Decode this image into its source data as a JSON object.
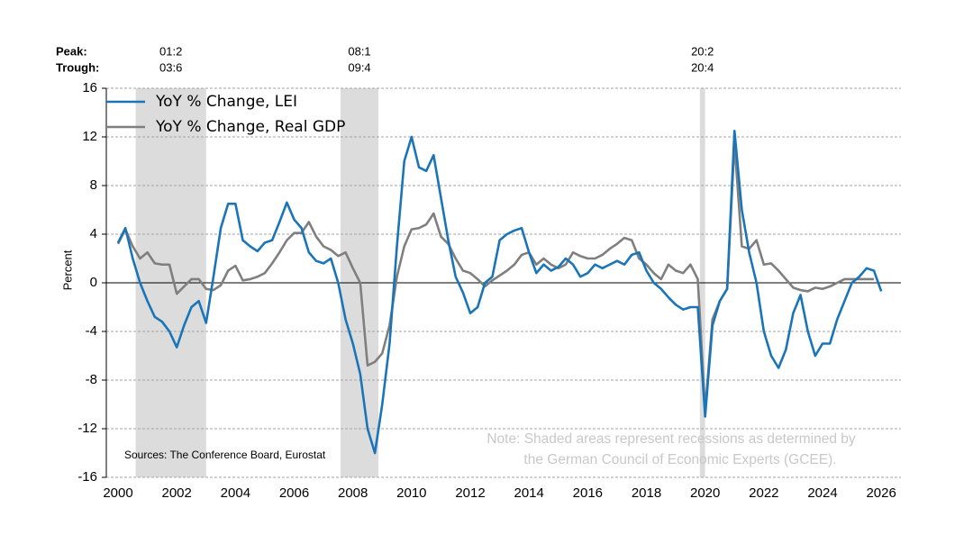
{
  "chart_data": {
    "type": "line",
    "y_label": "Percent",
    "peak_header": "Peak:",
    "trough_header": "Trough:",
    "source": "Sources: The Conference Board, Eurostat",
    "note": [
      "Note: Shaded areas represent recessions as determined by",
      "the German Council of Economic Experts (GCEE)."
    ],
    "recessions": [
      {
        "peak": "01:2",
        "trough": "03:6",
        "start": 2000.6,
        "end": 2003.0
      },
      {
        "peak": "08:1",
        "trough": "09:4",
        "start": 2007.58,
        "end": 2008.87
      },
      {
        "peak": "20:2",
        "trough": "20:4",
        "start": 2019.82,
        "end": 2020.0
      }
    ],
    "recession_color": "#dcdcdc",
    "xlim": [
      1999.6,
      2026.67
    ],
    "ylim": [
      -16,
      16
    ],
    "xticks": [
      2000,
      2002,
      2004,
      2006,
      2008,
      2010,
      2012,
      2014,
      2016,
      2018,
      2020,
      2022,
      2024,
      2026
    ],
    "yticks": [
      -16,
      -12,
      -8,
      -4,
      0,
      4,
      8,
      12,
      16
    ],
    "grid": true,
    "legend": "top-left",
    "x": [
      2000,
      2000.25,
      2000.5,
      2000.75,
      2001,
      2001.25,
      2001.5,
      2001.75,
      2002,
      2002.25,
      2002.5,
      2002.75,
      2003,
      2003.25,
      2003.5,
      2003.75,
      2004,
      2004.25,
      2004.5,
      2004.75,
      2005,
      2005.25,
      2005.5,
      2005.75,
      2006,
      2006.25,
      2006.5,
      2006.75,
      2007,
      2007.25,
      2007.5,
      2007.75,
      2008,
      2008.25,
      2008.5,
      2008.75,
      2009,
      2009.25,
      2009.5,
      2009.75,
      2010,
      2010.25,
      2010.5,
      2010.75,
      2011,
      2011.25,
      2011.5,
      2011.75,
      2012,
      2012.25,
      2012.5,
      2012.75,
      2013,
      2013.25,
      2013.5,
      2013.75,
      2014,
      2014.25,
      2014.5,
      2014.75,
      2015,
      2015.25,
      2015.5,
      2015.75,
      2016,
      2016.25,
      2016.5,
      2016.75,
      2017,
      2017.25,
      2017.5,
      2017.75,
      2018,
      2018.25,
      2018.5,
      2018.75,
      2019,
      2019.25,
      2019.5,
      2019.75,
      2020,
      2020.25,
      2020.5,
      2020.75,
      2021,
      2021.25,
      2021.5,
      2021.75,
      2022,
      2022.25,
      2022.5,
      2022.75,
      2023,
      2023.25,
      2023.5,
      2023.75,
      2024,
      2024.25,
      2024.5,
      2024.75,
      2025,
      2025.25,
      2025.5,
      2025.75,
      2026
    ],
    "series": [
      {
        "name": "YoY % Change, LEI",
        "color": "#1a75b8",
        "values": [
          3.3,
          4.5,
          2.0,
          0.0,
          -1.5,
          -2.8,
          -3.2,
          -4.0,
          -5.3,
          -3.5,
          -2.0,
          -1.5,
          -3.3,
          0.5,
          4.5,
          6.5,
          6.5,
          3.5,
          3.0,
          2.6,
          3.3,
          3.5,
          5.0,
          6.6,
          5.2,
          4.5,
          2.5,
          1.8,
          1.6,
          2.0,
          0.0,
          -3.0,
          -5.0,
          -7.5,
          -12.0,
          -14.0,
          -10.0,
          -5.0,
          3.0,
          10.0,
          12.0,
          9.5,
          9.2,
          10.5,
          7.0,
          3.5,
          0.5,
          -0.8,
          -2.5,
          -2.0,
          0.0,
          0.5,
          3.5,
          4.0,
          4.3,
          4.5,
          2.5,
          0.8,
          1.5,
          1.0,
          1.3,
          2.0,
          1.5,
          0.5,
          0.8,
          1.5,
          1.2,
          1.5,
          1.8,
          1.5,
          2.3,
          2.5,
          1.0,
          0.0,
          -0.5,
          -1.2,
          -1.8,
          -2.2,
          -2.0,
          -2.0,
          -11.0,
          -3.5,
          -1.5,
          -0.5,
          12.5,
          6.0,
          2.5,
          0.0,
          -4.0,
          -6.0,
          -7.0,
          -5.5,
          -2.5,
          -1.0,
          -4.0,
          -6.0,
          -5.0,
          -5.0,
          -3.0,
          -1.5,
          0.0,
          0.5,
          1.2,
          1.0,
          -0.7
        ]
      },
      {
        "name": "YoY % Change, Real GDP",
        "color": "#7f7f7f",
        "values": [
          3.2,
          4.4,
          3.0,
          2.0,
          2.5,
          1.6,
          1.5,
          1.5,
          -0.9,
          -0.3,
          0.3,
          0.3,
          -0.5,
          -0.6,
          -0.2,
          1.0,
          1.4,
          0.2,
          0.3,
          0.5,
          0.8,
          1.6,
          2.5,
          3.5,
          4.1,
          4.1,
          5.0,
          3.8,
          3.0,
          2.7,
          2.2,
          2.5,
          1.2,
          0.0,
          -6.8,
          -6.5,
          -5.8,
          -3.5,
          0.5,
          3.0,
          4.4,
          4.5,
          4.8,
          5.7,
          3.8,
          3.2,
          2.0,
          1.0,
          0.8,
          0.3,
          -0.3,
          0.2,
          0.6,
          1.0,
          1.5,
          2.3,
          2.5,
          1.5,
          2.0,
          1.5,
          1.2,
          1.5,
          2.5,
          2.2,
          2.0,
          2.0,
          2.3,
          2.8,
          3.2,
          3.7,
          3.5,
          2.0,
          1.5,
          0.8,
          0.3,
          1.5,
          1.0,
          0.8,
          1.5,
          0.3,
          -10.5,
          -3.0,
          -1.5,
          -0.5,
          11.5,
          3.0,
          2.8,
          3.5,
          1.5,
          1.6,
          1.0,
          0.3,
          -0.4,
          -0.6,
          -0.7,
          -0.4,
          -0.5,
          -0.3,
          0.0,
          0.3,
          0.3,
          0.3,
          0.3,
          0.3,
          null
        ]
      }
    ]
  }
}
